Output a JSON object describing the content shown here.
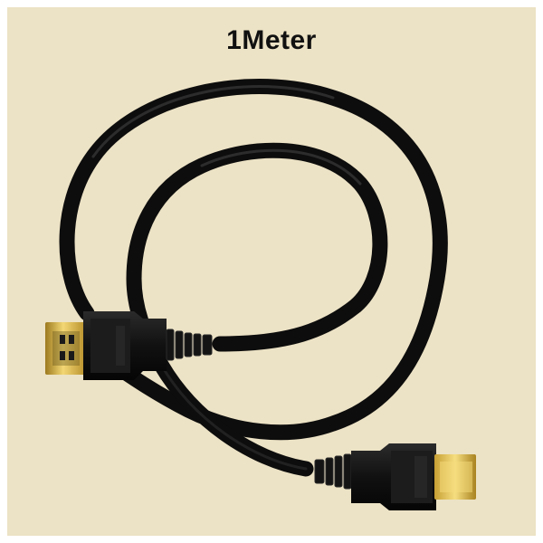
{
  "title": "1Meter",
  "product_image": {
    "subject": "hdmi-cable",
    "cable_color": "#111111",
    "connector_color": "#d9b33a",
    "background_color": "#ece2c5"
  }
}
